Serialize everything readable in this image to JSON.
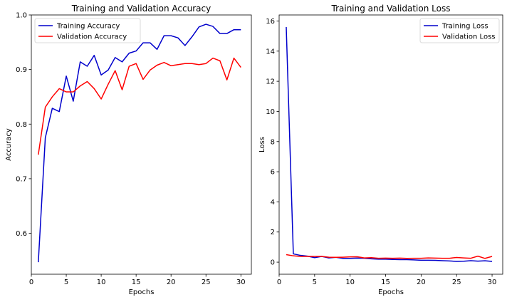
{
  "chart_data": [
    {
      "type": "line",
      "title": "Training and Validation Accuracy",
      "xlabel": "Epochs",
      "ylabel": "Accuracy",
      "xlim": [
        0,
        31.5
      ],
      "ylim": [
        0.525,
        1.0
      ],
      "xticks": [
        0,
        5,
        10,
        15,
        20,
        25,
        30
      ],
      "yticks": [
        0.6,
        0.7,
        0.8,
        0.9,
        1.0
      ],
      "ytick_format": 1,
      "legend": "upper-left",
      "grid": false,
      "x": [
        1,
        2,
        3,
        4,
        5,
        6,
        7,
        8,
        9,
        10,
        11,
        12,
        13,
        14,
        15,
        16,
        17,
        18,
        19,
        20,
        21,
        22,
        23,
        24,
        25,
        26,
        27,
        28,
        29,
        30
      ],
      "series": [
        {
          "name": "Training Accuracy",
          "color": "#0000cc",
          "values": [
            0.547,
            0.775,
            0.829,
            0.823,
            0.888,
            0.842,
            0.914,
            0.906,
            0.926,
            0.89,
            0.899,
            0.922,
            0.914,
            0.93,
            0.934,
            0.949,
            0.949,
            0.937,
            0.962,
            0.962,
            0.958,
            0.944,
            0.96,
            0.978,
            0.983,
            0.979,
            0.966,
            0.966,
            0.973,
            0.973
          ]
        },
        {
          "name": "Validation Accuracy",
          "color": "#ff0000",
          "values": [
            0.744,
            0.831,
            0.85,
            0.865,
            0.859,
            0.859,
            0.87,
            0.878,
            0.865,
            0.846,
            0.873,
            0.898,
            0.863,
            0.906,
            0.911,
            0.882,
            0.899,
            0.908,
            0.913,
            0.907,
            0.909,
            0.911,
            0.911,
            0.909,
            0.911,
            0.921,
            0.916,
            0.881,
            0.921,
            0.904
          ]
        }
      ]
    },
    {
      "type": "line",
      "title": "Training and Validation Loss",
      "xlabel": "Epochs",
      "ylabel": "Loss",
      "xlim": [
        0,
        31.5
      ],
      "ylim": [
        -0.8,
        16.4
      ],
      "xticks": [
        0,
        5,
        10,
        15,
        20,
        25,
        30
      ],
      "yticks": [
        0,
        2,
        4,
        6,
        8,
        10,
        12,
        14,
        16
      ],
      "ytick_format": 0,
      "legend": "upper-right",
      "grid": false,
      "x": [
        1,
        2,
        3,
        4,
        5,
        6,
        7,
        8,
        9,
        10,
        11,
        12,
        13,
        14,
        15,
        16,
        17,
        18,
        19,
        20,
        21,
        22,
        23,
        24,
        25,
        26,
        27,
        28,
        29,
        30
      ],
      "series": [
        {
          "name": "Training Loss",
          "color": "#0000cc",
          "values": [
            15.6,
            0.55,
            0.45,
            0.4,
            0.3,
            0.38,
            0.28,
            0.32,
            0.25,
            0.25,
            0.27,
            0.26,
            0.22,
            0.2,
            0.2,
            0.18,
            0.17,
            0.17,
            0.15,
            0.13,
            0.13,
            0.12,
            0.1,
            0.08,
            0.05,
            0.06,
            0.1,
            0.07,
            0.09,
            0.05
          ]
        },
        {
          "name": "Validation Loss",
          "color": "#ff0000",
          "values": [
            0.5,
            0.42,
            0.38,
            0.38,
            0.38,
            0.38,
            0.33,
            0.32,
            0.33,
            0.35,
            0.36,
            0.28,
            0.3,
            0.26,
            0.27,
            0.26,
            0.27,
            0.25,
            0.26,
            0.26,
            0.28,
            0.27,
            0.26,
            0.26,
            0.31,
            0.28,
            0.26,
            0.4,
            0.25,
            0.38
          ]
        }
      ]
    }
  ]
}
